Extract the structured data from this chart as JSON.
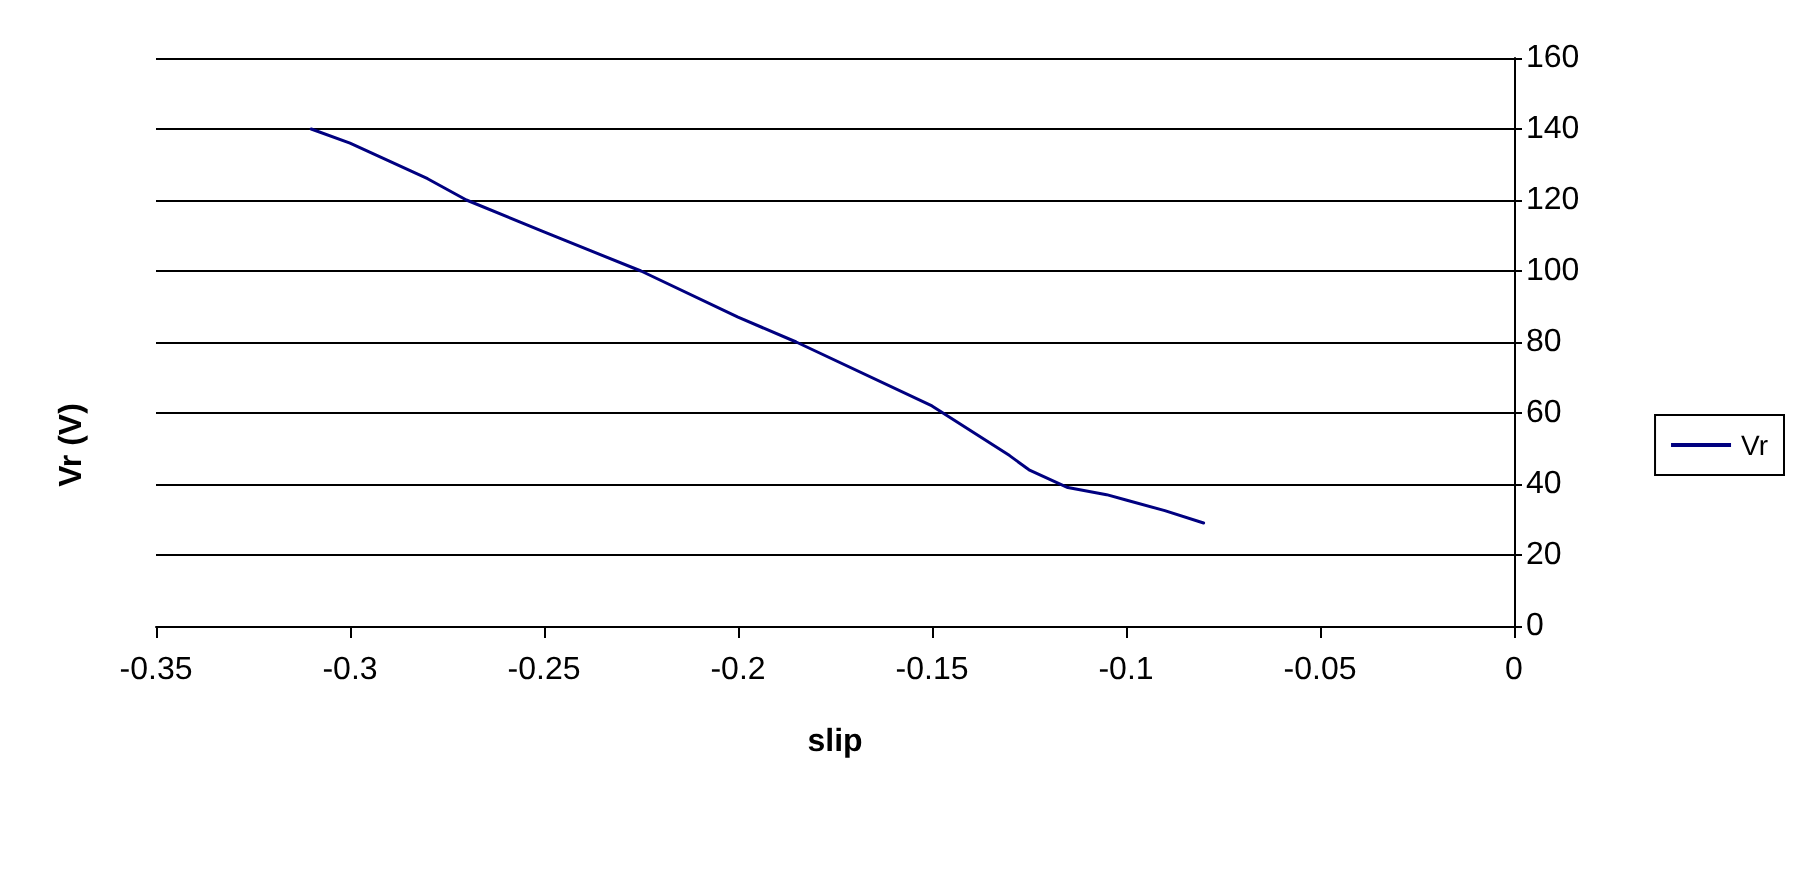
{
  "chart_data": {
    "type": "line",
    "xlabel": "slip",
    "ylabel": "Vr (V)",
    "x": [
      -0.31,
      -0.3,
      -0.29,
      -0.28,
      -0.27,
      -0.25,
      -0.225,
      -0.2,
      -0.185,
      -0.15,
      -0.14,
      -0.13,
      -0.125,
      -0.115,
      -0.105,
      -0.1,
      -0.09,
      -0.08
    ],
    "series": [
      {
        "name": "Vr",
        "color": "#000080",
        "values": [
          140,
          136,
          131,
          126,
          120,
          111,
          100,
          87,
          80,
          62,
          55,
          48,
          44,
          39,
          37,
          35.5,
          32.5,
          29
        ]
      }
    ],
    "xlim": [
      -0.35,
      0
    ],
    "xticks": [
      -0.35,
      -0.3,
      -0.25,
      -0.2,
      -0.15,
      -0.1,
      -0.05,
      0
    ],
    "ylim": [
      0,
      160
    ],
    "yticks": [
      0,
      20,
      40,
      60,
      80,
      100,
      120,
      140,
      160
    ],
    "grid": "y",
    "legend": "right",
    "marker": "none",
    "line_style": "solid"
  }
}
